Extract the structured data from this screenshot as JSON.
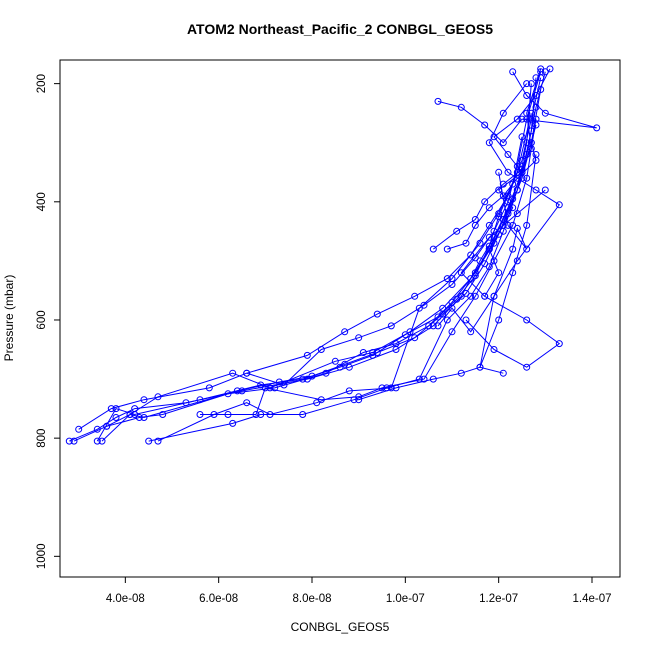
{
  "chart_data": {
    "type": "line",
    "title": "ATOM2 Northeast_Pacific_2 CONBGL_GEOS5",
    "xlabel": "CONBGL_GEOS5",
    "ylabel": "Pressure (mbar)",
    "xlim": [
      2.6e-08,
      1.46e-07
    ],
    "ylim": [
      1035,
      160
    ],
    "y_reversed": true,
    "x_ticks": [
      {
        "value": 4e-08,
        "label": "4.0e-08"
      },
      {
        "value": 6e-08,
        "label": "6.0e-08"
      },
      {
        "value": 8e-08,
        "label": "8.0e-08"
      },
      {
        "value": 1e-07,
        "label": "1.0e-07"
      },
      {
        "value": 1.2e-07,
        "label": "1.2e-07"
      },
      {
        "value": 1.4e-07,
        "label": "1.4e-07"
      }
    ],
    "y_ticks": [
      {
        "value": 200,
        "label": "200"
      },
      {
        "value": 400,
        "label": "400"
      },
      {
        "value": 600,
        "label": "600"
      },
      {
        "value": 800,
        "label": "800"
      },
      {
        "value": 1000,
        "label": "1000"
      }
    ],
    "grid": false,
    "series_color": "#0000ff",
    "marker": "open-circle",
    "series": [
      {
        "x": [
          2.8e-08,
          3.4e-08,
          3.8e-08,
          4.2e-08,
          5.3e-08,
          6.5e-08,
          7.9e-08,
          8.8e-08,
          9.8e-08,
          1.06e-07,
          1.12e-07,
          1.16e-07,
          1.19e-07,
          1.22e-07,
          1.25e-07,
          1.27e-07,
          1.28e-07
        ],
        "y": [
          805,
          785,
          765,
          750,
          740,
          720,
          700,
          680,
          650,
          610,
          560,
          500,
          460,
          410,
          350,
          280,
          190
        ]
      },
      {
        "x": [
          2.9e-08,
          3.6e-08,
          4.1e-08,
          4.7e-08,
          6.3e-08,
          7.1e-08,
          8.5e-08,
          9.3e-08,
          1.01e-07,
          1.08e-07,
          1.14e-07,
          1.18e-07,
          1.21e-07,
          1.24e-07,
          1.26e-07,
          1.27e-07
        ],
        "y": [
          805,
          780,
          760,
          730,
          690,
          715,
          670,
          655,
          620,
          580,
          530,
          480,
          430,
          380,
          300,
          200
        ]
      },
      {
        "x": [
          3e-08,
          3.7e-08,
          4.4e-08,
          5.8e-08,
          6.6e-08,
          7.4e-08,
          8.2e-08,
          9e-08,
          9.7e-08,
          1.04e-07,
          1.1e-07,
          1.15e-07,
          1.19e-07,
          1.22e-07,
          1.24e-07,
          1.26e-07,
          1.29e-07
        ],
        "y": [
          785,
          750,
          735,
          715,
          690,
          710,
          650,
          630,
          610,
          575,
          540,
          495,
          450,
          400,
          340,
          260,
          180
        ]
      },
      {
        "x": [
          3.4e-08,
          3.8e-08,
          4.2e-08,
          5.6e-08,
          6.9e-08,
          7.8e-08,
          8.6e-08,
          9.3e-08,
          1e-07,
          1.07e-07,
          1.11e-07,
          1.15e-07,
          1.18e-07,
          1.2e-07,
          1.23e-07,
          1.25e-07
        ],
        "y": [
          805,
          750,
          760,
          735,
          710,
          700,
          680,
          660,
          625,
          595,
          565,
          525,
          475,
          425,
          370,
          290
        ]
      },
      {
        "x": [
          3.5e-08,
          4.1e-08,
          4.4e-08,
          6.2e-08,
          7.2e-08,
          8.3e-08,
          9.1e-08,
          9.8e-08,
          1.05e-07,
          1.1e-07,
          1.15e-07,
          1.19e-07,
          1.22e-07,
          1.25e-07,
          1.28e-07
        ],
        "y": [
          805,
          760,
          765,
          725,
          715,
          690,
          655,
          640,
          610,
          570,
          520,
          470,
          420,
          360,
          270
        ]
      },
      {
        "x": [
          3.6e-08,
          4.3e-08,
          4.8e-08,
          6.4e-08,
          7.3e-08,
          8e-08,
          8.7e-08,
          9.4e-08,
          1.02e-07,
          1.08e-07,
          1.13e-07,
          1.17e-07,
          1.2e-07,
          1.23e-07,
          1.26e-07,
          1.28e-07,
          1.3e-07
        ],
        "y": [
          780,
          765,
          760,
          720,
          705,
          695,
          675,
          655,
          630,
          590,
          555,
          505,
          455,
          395,
          320,
          240,
          180
        ]
      },
      {
        "x": [
          4.5e-08,
          6.3e-08,
          6.9e-08,
          7.8e-08,
          8.9e-08,
          9.6e-08,
          1.03e-07,
          1.09e-07,
          1.14e-07,
          1.18e-07,
          1.21e-07,
          1.24e-07,
          1.27e-07,
          1.29e-07
        ],
        "y": [
          805,
          775,
          760,
          760,
          735,
          715,
          700,
          600,
          560,
          510,
          450,
          380,
          300,
          210
        ]
      },
      {
        "x": [
          4.7e-08,
          5.9e-08,
          6.6e-08,
          7.1e-08,
          8.1e-08,
          8.8e-08,
          9.7e-08,
          1.03e-07,
          1.1e-07,
          1.16e-07,
          1.2e-07,
          1.24e-07,
          1.27e-07
        ],
        "y": [
          805,
          760,
          740,
          760,
          740,
          720,
          715,
          580,
          530,
          470,
          420,
          350,
          250
        ]
      },
      {
        "x": [
          5.6e-08,
          6.2e-08,
          6.8e-08,
          7e-08,
          8.2e-08,
          9e-08,
          9.5e-08,
          1.04e-07,
          1.1e-07,
          1.15e-07,
          1.19e-07,
          1.23e-07,
          1.26e-07,
          1.28e-07
        ],
        "y": [
          760,
          760,
          760,
          715,
          735,
          730,
          715,
          700,
          620,
          560,
          500,
          440,
          360,
          260
        ]
      },
      {
        "x": [
          6.6e-08,
          7.9e-08,
          8.7e-08,
          9.4e-08,
          1.02e-07,
          1.09e-07,
          1.14e-07,
          1.18e-07,
          1.22e-07,
          1.25e-07,
          1.27e-07,
          1.29e-07
        ],
        "y": [
          690,
          660,
          620,
          590,
          560,
          530,
          490,
          440,
          390,
          330,
          260,
          190
        ]
      },
      {
        "x": [
          9e-08,
          9.8e-08,
          1.06e-07,
          1.12e-07,
          1.16e-07,
          1.2e-07,
          1.23e-07,
          1.26e-07,
          1.28e-07
        ],
        "y": [
          735,
          715,
          700,
          690,
          680,
          600,
          520,
          440,
          320
        ]
      },
      {
        "x": [
          1.07e-07,
          1.1e-07,
          1.14e-07,
          1.19e-07,
          1.24e-07,
          1.33e-07,
          1.28e-07,
          1.22e-07,
          1.18e-07,
          1.21e-07,
          1.26e-07
        ],
        "y": [
          610,
          580,
          620,
          560,
          500,
          405,
          380,
          350,
          300,
          250,
          200
        ]
      },
      {
        "x": [
          1.13e-07,
          1.19e-07,
          1.26e-07,
          1.33e-07,
          1.26e-07,
          1.17e-07,
          1.12e-07,
          1.18e-07,
          1.24e-07,
          1.3e-07
        ],
        "y": [
          600,
          650,
          680,
          640,
          600,
          560,
          520,
          460,
          420,
          380
        ]
      },
      {
        "x": [
          1.07e-07,
          1.12e-07,
          1.17e-07,
          1.21e-07,
          1.25e-07,
          1.41e-07,
          1.3e-07,
          1.26e-07,
          1.23e-07
        ],
        "y": [
          230,
          240,
          270,
          300,
          260,
          275,
          250,
          220,
          180
        ]
      },
      {
        "x": [
          1.21e-07,
          1.16e-07,
          1.19e-07,
          1.23e-07,
          1.24e-07,
          1.26e-07,
          1.22e-07,
          1.2e-07
        ],
        "y": [
          690,
          680,
          560,
          480,
          445,
          480,
          440,
          350
        ]
      },
      {
        "x": [
          1.17e-07,
          1.2e-07,
          1.18e-07,
          1.21e-07,
          1.23e-07,
          1.2e-07,
          1.25e-07,
          1.22e-07,
          1.19e-07,
          1.24e-07,
          1.28e-07,
          1.31e-07
        ],
        "y": [
          560,
          520,
          480,
          440,
          410,
          380,
          350,
          320,
          290,
          260,
          220,
          175
        ]
      },
      {
        "x": [
          1.06e-07,
          1.11e-07,
          1.15e-07,
          1.17e-07,
          1.21e-07,
          1.25e-07,
          1.27e-07,
          1.26e-07,
          1.29e-07
        ],
        "y": [
          480,
          450,
          430,
          400,
          370,
          345,
          310,
          250,
          175
        ]
      },
      {
        "x": [
          1.09e-07,
          1.13e-07,
          1.15e-07,
          1.18e-07,
          1.21e-07,
          1.24e-07,
          1.28e-07,
          1.27e-07
        ],
        "y": [
          480,
          470,
          440,
          410,
          390,
          360,
          330,
          300
        ]
      }
    ]
  }
}
